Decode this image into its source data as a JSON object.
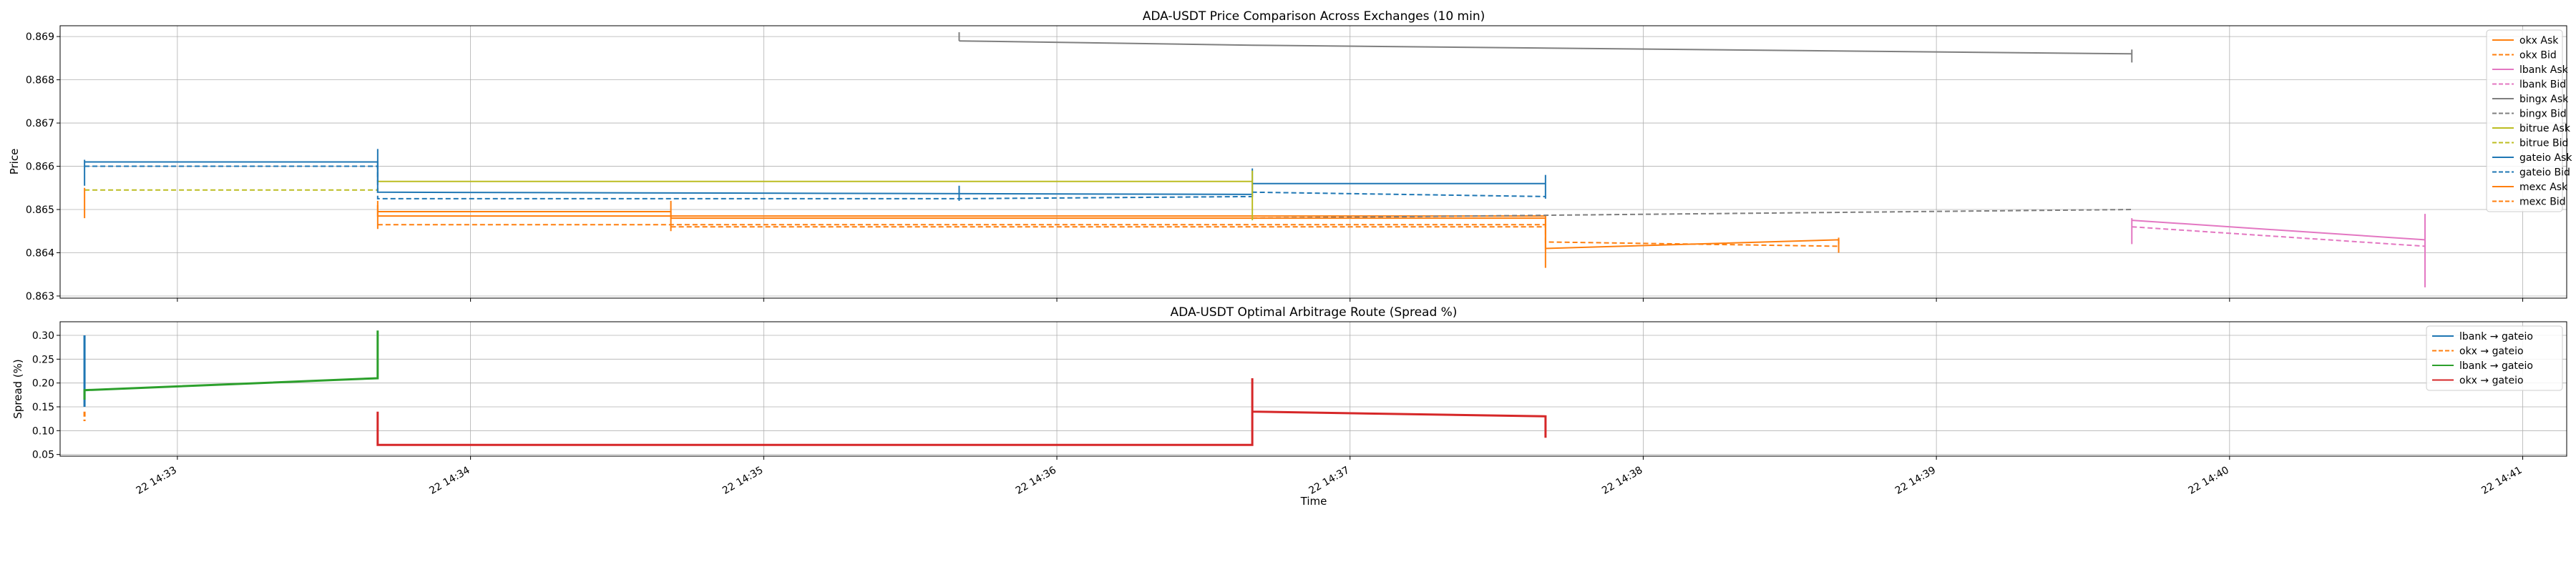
{
  "figure": {
    "xlabel": "Time"
  },
  "x_ticks": [
    "22 14:33",
    "22 14:34",
    "22 14:35",
    "22 14:36",
    "22 14:37",
    "22 14:38",
    "22 14:39",
    "22 14:40",
    "22 14:41"
  ],
  "chart_data": [
    {
      "type": "line",
      "title": "ADA-USDT Price Comparison Across Exchanges (10 min)",
      "xlabel": "",
      "ylabel": "Price",
      "xlim": [
        "14:32:36",
        "14:41:09"
      ],
      "ylim": [
        0.86295,
        0.86925
      ],
      "yticks": [
        0.863,
        0.864,
        0.865,
        0.866,
        0.867,
        0.868,
        0.869
      ],
      "ytick_labels": [
        "0.863",
        "0.864",
        "0.865",
        "0.866",
        "0.867",
        "0.868",
        "0.869"
      ],
      "grid": true,
      "legend": "upper right",
      "series": [
        {
          "name": "okx Ask",
          "color": "#ff7f0e",
          "dash": "solid",
          "points": [
            [
              "14:33:41",
              0.8651
            ],
            [
              "14:33:41",
              0.86485
            ],
            [
              "14:37:40",
              0.86485
            ],
            [
              "14:37:40",
              0.8641
            ],
            [
              "14:38:40",
              0.8643
            ],
            [
              "14:38:40",
              0.8642
            ]
          ]
        },
        {
          "name": "okx Bid",
          "color": "#ff7f0e",
          "dash": "dashed",
          "points": [
            [
              "14:33:41",
              0.86465
            ],
            [
              "14:37:40",
              0.86465
            ],
            [
              "14:37:40",
              0.86425
            ],
            [
              "14:38:40",
              0.86415
            ]
          ]
        },
        {
          "name": "lbank Ask",
          "color": "#e377c2",
          "dash": "solid",
          "points": [
            [
              "14:39:40",
              0.86475
            ],
            [
              "14:40:40",
              0.8643
            ]
          ]
        },
        {
          "name": "lbank Bid",
          "color": "#e377c2",
          "dash": "dashed",
          "points": [
            [
              "14:39:40",
              0.8646
            ],
            [
              "14:40:40",
              0.86415
            ]
          ]
        },
        {
          "name": "bingx Ask",
          "color": "#7f7f7f",
          "dash": "solid",
          "points": [
            [
              "14:35:40",
              0.8689
            ],
            [
              "14:36:40",
              0.8688
            ],
            [
              "14:39:40",
              0.8686
            ]
          ]
        },
        {
          "name": "bingx Bid",
          "color": "#7f7f7f",
          "dash": "dashed",
          "points": [
            [
              "14:36:40",
              0.8648
            ],
            [
              "14:39:40",
              0.865
            ]
          ]
        },
        {
          "name": "bitrue Ask",
          "color": "#bcbd22",
          "dash": "solid",
          "points": [
            [
              "14:33:41",
              0.86565
            ],
            [
              "14:36:40",
              0.86565
            ]
          ]
        },
        {
          "name": "bitrue Bid",
          "color": "#bcbd22",
          "dash": "dashed",
          "points": [
            [
              "14:32:41",
              0.86545
            ],
            [
              "14:33:41",
              0.86545
            ]
          ]
        },
        {
          "name": "gateio Ask",
          "color": "#1f77b4",
          "dash": "solid",
          "points": [
            [
              "14:32:41",
              0.8661
            ],
            [
              "14:33:41",
              0.8661
            ],
            [
              "14:33:41",
              0.8654
            ],
            [
              "14:36:40",
              0.86535
            ],
            [
              "14:36:40",
              0.8656
            ],
            [
              "14:37:40",
              0.8656
            ]
          ]
        },
        {
          "name": "gateio Bid",
          "color": "#1f77b4",
          "dash": "dashed",
          "points": [
            [
              "14:32:41",
              0.866
            ],
            [
              "14:33:41",
              0.866
            ],
            [
              "14:33:41",
              0.86525
            ],
            [
              "14:35:40",
              0.86525
            ],
            [
              "14:36:40",
              0.8653
            ],
            [
              "14:36:40",
              0.8654
            ],
            [
              "14:37:40",
              0.8653
            ]
          ]
        },
        {
          "name": "mexc Ask",
          "color": "#ff7f0e",
          "dash": "solid",
          "points": [
            [
              "14:33:41",
              0.86495
            ],
            [
              "14:34:41",
              0.86495
            ],
            [
              "14:34:41",
              0.8648
            ],
            [
              "14:37:40",
              0.8648
            ]
          ]
        },
        {
          "name": "mexc Bid",
          "color": "#ff7f0e",
          "dash": "dashed",
          "points": [
            [
              "14:34:41",
              0.8646
            ],
            [
              "14:37:40",
              0.8646
            ]
          ]
        }
      ],
      "spikes": [
        {
          "color": "#1f77b4",
          "x": "14:32:41",
          "y1": 0.86615,
          "y2": 0.86555
        },
        {
          "color": "#ff7f0e",
          "x": "14:32:41",
          "y1": 0.8655,
          "y2": 0.8648
        },
        {
          "color": "#1f77b4",
          "x": "14:33:41",
          "y1": 0.8664,
          "y2": 0.86565
        },
        {
          "color": "#ff7f0e",
          "x": "14:33:41",
          "y1": 0.8652,
          "y2": 0.86455
        },
        {
          "color": "#ff7f0e",
          "x": "14:34:41",
          "y1": 0.8652,
          "y2": 0.8645
        },
        {
          "color": "#7f7f7f",
          "x": "14:35:40",
          "y1": 0.8691,
          "y2": 0.8689
        },
        {
          "color": "#1f77b4",
          "x": "14:35:40",
          "y1": 0.86555,
          "y2": 0.8652
        },
        {
          "color": "#1f77b4",
          "x": "14:36:40",
          "y1": 0.86595,
          "y2": 0.8653
        },
        {
          "color": "#bcbd22",
          "x": "14:36:40",
          "y1": 0.8659,
          "y2": 0.86475
        },
        {
          "color": "#1f77b4",
          "x": "14:37:40",
          "y1": 0.8658,
          "y2": 0.86525
        },
        {
          "color": "#ff7f0e",
          "x": "14:37:40",
          "y1": 0.8648,
          "y2": 0.86365
        },
        {
          "color": "#ff7f0e",
          "x": "14:38:40",
          "y1": 0.86435,
          "y2": 0.864
        },
        {
          "color": "#7f7f7f",
          "x": "14:39:40",
          "y1": 0.8687,
          "y2": 0.8684
        },
        {
          "color": "#e377c2",
          "x": "14:39:40",
          "y1": 0.8648,
          "y2": 0.8642
        },
        {
          "color": "#e377c2",
          "x": "14:40:40",
          "y1": 0.8649,
          "y2": 0.8632
        }
      ]
    },
    {
      "type": "line",
      "title": "ADA-USDT Optimal Arbitrage Route (Spread %)",
      "xlabel": "Time",
      "ylabel": "Spread (%)",
      "xlim": [
        "14:32:36",
        "14:41:09"
      ],
      "ylim": [
        0.0465,
        0.3285
      ],
      "yticks": [
        0.05,
        0.1,
        0.15,
        0.2,
        0.25,
        0.3
      ],
      "ytick_labels": [
        "0.05",
        "0.10",
        "0.15",
        "0.20",
        "0.25",
        "0.30"
      ],
      "grid": true,
      "legend": "upper right",
      "series": [
        {
          "name": "lbank → gateio",
          "color": "#1f77b4",
          "dash": "solid",
          "points": [
            [
              "14:32:41",
              0.3
            ],
            [
              "14:32:41",
              0.15
            ]
          ]
        },
        {
          "name": "okx → gateio",
          "color": "#ff7f0e",
          "dash": "dashed",
          "points": [
            [
              "14:32:41",
              0.14
            ],
            [
              "14:32:41",
              0.12
            ]
          ]
        },
        {
          "name": "lbank → gateio",
          "color": "#2ca02c",
          "dash": "solid",
          "points": [
            [
              "14:32:41",
              0.165
            ],
            [
              "14:32:41",
              0.185
            ],
            [
              "14:33:41",
              0.21
            ],
            [
              "14:33:41",
              0.31
            ],
            [
              "14:33:41",
              0.21
            ]
          ]
        },
        {
          "name": "okx → gateio",
          "color": "#d62728",
          "dash": "solid",
          "points": [
            [
              "14:33:41",
              0.14
            ],
            [
              "14:33:41",
              0.07
            ],
            [
              "14:36:40",
              0.07
            ],
            [
              "14:36:40",
              0.21
            ],
            [
              "14:36:40",
              0.14
            ],
            [
              "14:37:40",
              0.13
            ],
            [
              "14:37:40",
              0.085
            ]
          ]
        }
      ]
    }
  ]
}
